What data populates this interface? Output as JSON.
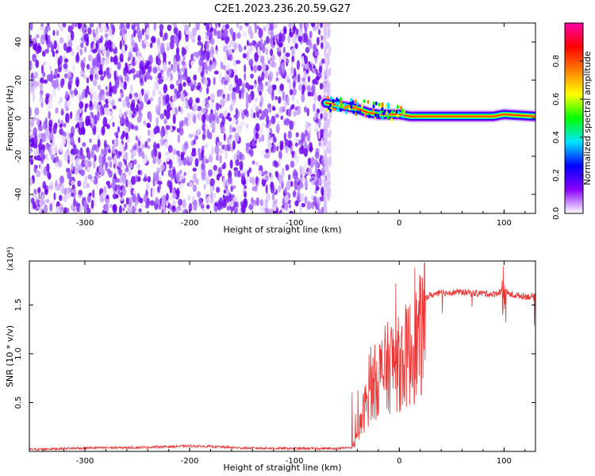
{
  "title": "C2E1.2023.236.20.59.G27",
  "colors": {
    "noise": "#7a1ff5",
    "signal_line": "#ee3333",
    "axis": "#000000",
    "colormap": [
      "#ffffff",
      "#8a00ff",
      "#0000ff",
      "#00e5ff",
      "#00ff00",
      "#ffff00",
      "#ff8000",
      "#ff0000",
      "#ff00aa"
    ]
  },
  "chart_data": [
    {
      "type": "heatmap",
      "xlabel": "Height of straight line (km)",
      "ylabel": "Frequency (Hz)",
      "xlim": [
        -353,
        130
      ],
      "ylim": [
        -50,
        50
      ],
      "x_ticks": [
        -300,
        -200,
        -100,
        0,
        100
      ],
      "x_tick_labels": [
        "-300",
        "-200",
        "-100",
        "0",
        "100"
      ],
      "y_ticks": [
        -40,
        -20,
        0,
        20,
        40
      ],
      "y_tick_labels": [
        "-40",
        "-20",
        "0",
        "20",
        "40"
      ],
      "noise_region_x": [
        -353,
        -70
      ],
      "signal_trace": {
        "x": [
          -70,
          -60,
          -50,
          -40,
          -30,
          -20,
          -10,
          0,
          10,
          30,
          60,
          90,
          100,
          130
        ],
        "y": [
          8,
          7,
          6,
          5,
          3,
          2,
          2,
          2,
          1,
          1,
          1,
          1,
          2,
          1
        ]
      },
      "colorbar": {
        "label": "Normalized spectral amplitude",
        "range": [
          0,
          1
        ],
        "ticks": [
          0.0,
          0.2,
          0.4,
          0.6,
          0.8
        ],
        "tick_labels": [
          "0.0",
          "0.2",
          "0.4",
          "0.6",
          "0.8"
        ]
      },
      "grid": false
    },
    {
      "type": "line",
      "xlabel": "Height of straight line (km)",
      "ylabel": "SNR (10 * v/v)",
      "scale_label": "(x10⁴)",
      "xlim": [
        -353,
        130
      ],
      "ylim": [
        0,
        19500
      ],
      "x_ticks": [
        -300,
        -200,
        -100,
        0,
        100
      ],
      "x_tick_labels": [
        "-300",
        "-200",
        "-100",
        "0",
        "100"
      ],
      "y_ticks": [
        5000,
        10000,
        15000
      ],
      "y_tick_labels": [
        "0.5",
        "1.0",
        "1.5"
      ],
      "series": [
        {
          "x": [
            -353,
            -300,
            -250,
            -200,
            -180,
            -150,
            -100,
            -60,
            -45,
            -40,
            -35,
            -30,
            -25,
            -20,
            -15,
            -10,
            -5,
            0,
            5,
            10,
            15,
            20,
            25,
            30,
            40,
            50,
            60,
            70,
            80,
            90,
            95,
            100,
            105,
            110,
            120,
            130
          ],
          "y": [
            200,
            350,
            400,
            550,
            500,
            350,
            300,
            300,
            400,
            1800,
            4500,
            7000,
            8500,
            9500,
            10200,
            10800,
            11500,
            11000,
            12000,
            12600,
            13500,
            14600,
            15800,
            16000,
            16200,
            16300,
            16300,
            16200,
            16200,
            16100,
            16300,
            16500,
            16100,
            16000,
            15900,
            15800
          ]
        }
      ],
      "grid": false
    }
  ]
}
